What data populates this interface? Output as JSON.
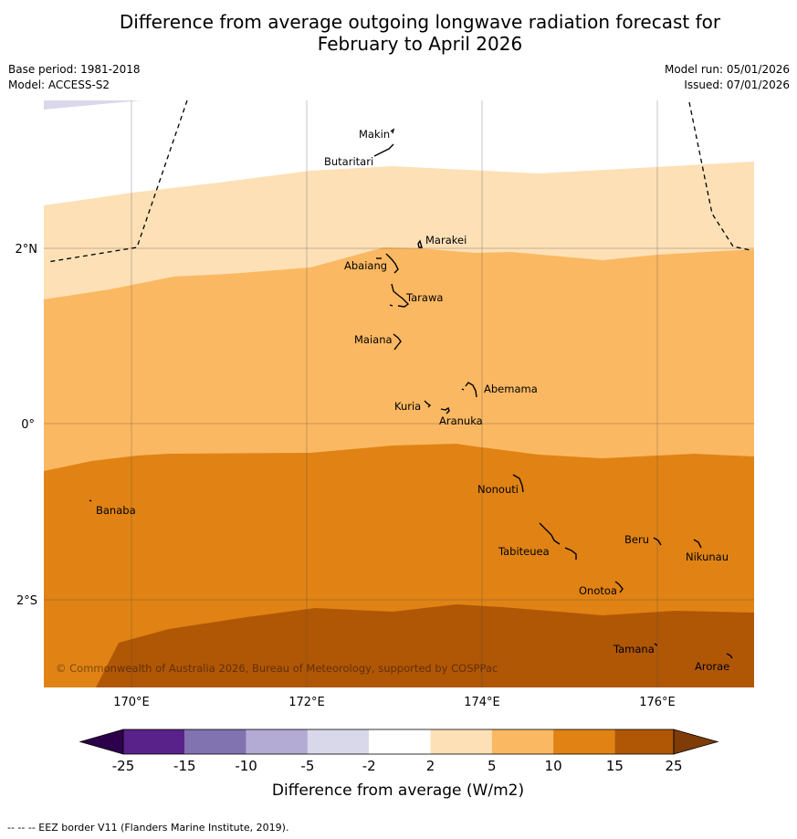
{
  "title": {
    "line1": "Difference from average outgoing longwave radiation forecast for",
    "line2": "February to April 2026"
  },
  "meta": {
    "base_period": "Base period: 1981-2018",
    "model": "Model: ACCESS-S2",
    "model_run": "Model run: 05/01/2026",
    "issued": "Issued: 07/01/2026"
  },
  "map": {
    "lon_labels": [
      "170°E",
      "172°E",
      "174°E",
      "176°E"
    ],
    "lat_labels": [
      "2°N",
      "0°",
      "2°S"
    ],
    "copyright": "© Commonwealth of Australia 2026, Bureau of Meteorology, supported by COSPPac",
    "islands": [
      "Makin",
      "Butaritari",
      "Marakei",
      "Abaiang",
      "Tarawa",
      "Maiana",
      "Abemama",
      "Kuria",
      "Aranuka",
      "Nonouti",
      "Banaba",
      "Tabiteuea",
      "Beru",
      "Nikunau",
      "Onotoa",
      "Tamana",
      "Arorae"
    ]
  },
  "colors": {
    "c_-20": "#59218a",
    "c_-12": "#8173b0",
    "c_-7": "#b3abd4",
    "c_-3": "#d9d8eb",
    "c_0": "#ffffff",
    "c_3": "#fde0b6",
    "c_7": "#fbb862",
    "c_12": "#e08314",
    "c_20": "#b05706",
    "ext_low": "#2d004b",
    "ext_high": "#7f3b08"
  },
  "colorbar": {
    "ticks": [
      "-25",
      "-15",
      "-10",
      "-5",
      "-2",
      "2",
      "5",
      "10",
      "15",
      "25"
    ],
    "label": "Difference from average (W/m2)"
  },
  "footer": "--  --  -- EEZ border V11 (Flanders Marine Institute, 2019)."
}
